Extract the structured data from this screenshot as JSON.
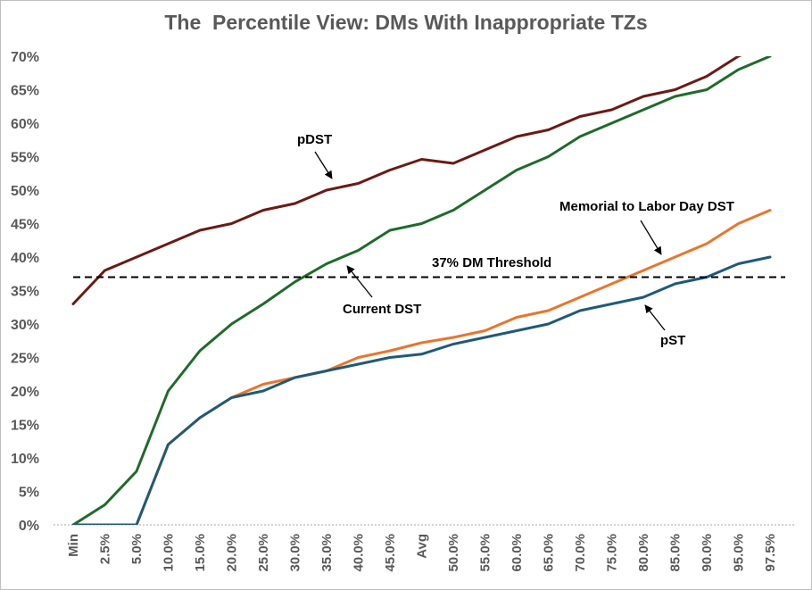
{
  "chart_data": {
    "type": "line",
    "title": "The  Percentile View: DMs With Inappropriate TZs",
    "xlabel": "",
    "ylabel": "",
    "ylim": [
      0,
      70
    ],
    "yticks": [
      "0%",
      "5%",
      "10%",
      "15%",
      "20%",
      "25%",
      "30%",
      "35%",
      "40%",
      "45%",
      "50%",
      "55%",
      "60%",
      "65%",
      "70%"
    ],
    "grid": false,
    "categories": [
      "Min",
      "2.5%",
      "5.0%",
      "10.0%",
      "15.0%",
      "20.0%",
      "25.0%",
      "30.0%",
      "35.0%",
      "40.0%",
      "45.0%",
      "Avg",
      "50.0%",
      "55.0%",
      "60.0%",
      "65.0%",
      "70.0%",
      "75.0%",
      "80.0%",
      "85.0%",
      "90.0%",
      "95.0%",
      "97.5%"
    ],
    "series": [
      {
        "name": "pDST",
        "color": "#6b1a14",
        "values": [
          33,
          38,
          40,
          42,
          44,
          45,
          47,
          48,
          50,
          51,
          53,
          54.6,
          54,
          56,
          58,
          59,
          61,
          62,
          64,
          65,
          67,
          70,
          72
        ]
      },
      {
        "name": "Current DST",
        "color": "#1e6b2a",
        "values": [
          0,
          3,
          8,
          20,
          26,
          30,
          33,
          36.3,
          39,
          41,
          44,
          45,
          47,
          50,
          53,
          55,
          58,
          60,
          62,
          64,
          65,
          68,
          70
        ]
      },
      {
        "name": "Memorial to Labor Day DST",
        "color": "#e8762d",
        "values": [
          0,
          0,
          0,
          12,
          16,
          19,
          21,
          22,
          23,
          25,
          26,
          27.2,
          28,
          29,
          31,
          32,
          34,
          36,
          38,
          40,
          42,
          45,
          47
        ]
      },
      {
        "name": "pST",
        "color": "#1f5a78",
        "values": [
          0,
          0,
          0,
          12,
          16,
          19,
          20,
          22,
          23,
          24,
          25,
          25.5,
          27,
          28,
          29,
          30,
          32,
          33,
          34,
          36,
          37,
          39,
          40
        ]
      }
    ],
    "threshold": {
      "label": "37% DM Threshold",
      "value": 37
    }
  },
  "annotations": {
    "pdst": "pDST",
    "current_dst": "Current DST",
    "memorial": "Memorial to Labor Day DST",
    "pst": "pST",
    "threshold": "37% DM Threshold"
  }
}
